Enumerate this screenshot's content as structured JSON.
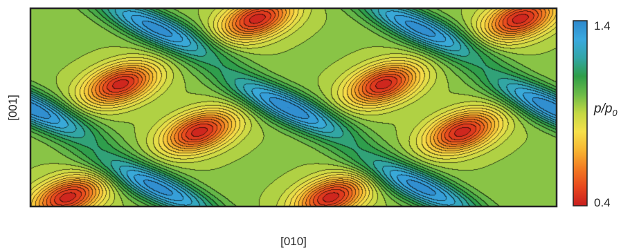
{
  "chart_data": {
    "type": "heatmap",
    "title": "",
    "xlabel": "[010]",
    "ylabel": "[001]",
    "colorbar": {
      "label_main": "p/p",
      "label_sub": "0",
      "min": 0.4,
      "max": 1.4,
      "min_label": "0.4",
      "max_label": "1.4",
      "colors": [
        "#c81e1e",
        "#e8471e",
        "#f27a22",
        "#f7b531",
        "#f6e04a",
        "#c4d843",
        "#6dbb48",
        "#2f9e48",
        "#32a6a8",
        "#3aa9df",
        "#2e88cc"
      ]
    },
    "field": {
      "description_of_features": "periodic pattern of tilted high-density lobes and low-density pockets",
      "maxima": [
        {
          "x": 0.24,
          "y": 0.1,
          "v": 1.38
        },
        {
          "x": 0.49,
          "y": 0.5,
          "v": 1.4
        },
        {
          "x": 0.24,
          "y": 0.9,
          "v": 1.38
        },
        {
          "x": 0.74,
          "y": 0.1,
          "v": 1.38
        },
        {
          "x": 0.74,
          "y": 0.9,
          "v": 1.38
        },
        {
          "x": 0.0,
          "y": 0.5,
          "v": 1.4
        },
        {
          "x": 0.99,
          "y": 0.5,
          "v": 1.4
        }
      ],
      "minima": [
        {
          "x": 0.17,
          "y": 0.38,
          "v": 0.42
        },
        {
          "x": 0.32,
          "y": 0.62,
          "v": 0.42
        },
        {
          "x": 0.43,
          "y": 0.05,
          "v": 0.42
        },
        {
          "x": 0.67,
          "y": 0.38,
          "v": 0.42
        },
        {
          "x": 0.82,
          "y": 0.62,
          "v": 0.42
        },
        {
          "x": 0.93,
          "y": 0.05,
          "v": 0.42
        },
        {
          "x": 0.07,
          "y": 0.95,
          "v": 0.42
        },
        {
          "x": 0.57,
          "y": 0.95,
          "v": 0.42
        }
      ]
    }
  }
}
